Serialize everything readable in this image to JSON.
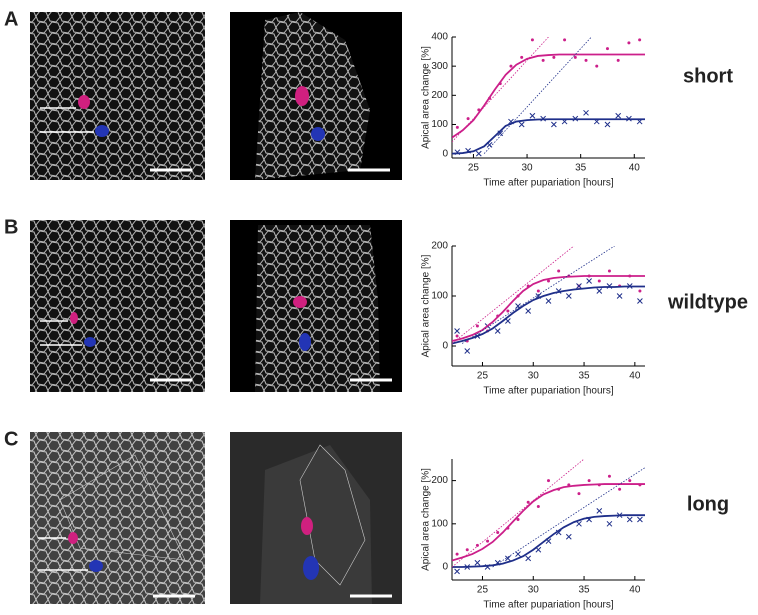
{
  "panels": [
    {
      "letter": "A",
      "label": "short"
    },
    {
      "letter": "B",
      "label": "wildtype"
    },
    {
      "letter": "C",
      "label": "long"
    }
  ],
  "chart_data": [
    {
      "type": "scatter",
      "x_label": "Time after pupariation [hours]",
      "y_label": "Apical area change [%]",
      "xlim": [
        23,
        41
      ],
      "ylim": [
        -15,
        400
      ],
      "xticks": [
        25,
        30,
        35,
        40
      ],
      "yticks": [
        0,
        100,
        200,
        300,
        400
      ],
      "series": [
        {
          "color": "#cc1f8a",
          "marker": "dot",
          "x": [
            23.5,
            24.5,
            25.5,
            26.5,
            27.5,
            28.5,
            29.5,
            30.5,
            31.5,
            32.5,
            33.5,
            34.5,
            35.5,
            36.5,
            37.5,
            38.5,
            39.5,
            40.5
          ],
          "values": [
            90,
            120,
            150,
            190,
            240,
            300,
            330,
            390,
            320,
            330,
            390,
            330,
            320,
            300,
            360,
            320,
            380,
            390
          ]
        },
        {
          "color": "#1f2f8a",
          "marker": "x",
          "x": [
            23.5,
            24.5,
            25.5,
            26.5,
            27.5,
            28.5,
            29.5,
            30.5,
            31.5,
            32.5,
            33.5,
            34.5,
            35.5,
            36.5,
            37.5,
            38.5,
            39.5,
            40.5
          ],
          "values": [
            5,
            10,
            0,
            30,
            70,
            110,
            100,
            130,
            120,
            100,
            110,
            120,
            140,
            110,
            100,
            130,
            120,
            110
          ]
        },
        {
          "color": "#cc1f8a",
          "style": "solid",
          "x": [
            23,
            24,
            25,
            26,
            27,
            28,
            29,
            30,
            31,
            32,
            33,
            34,
            35,
            36,
            37,
            38,
            39,
            40,
            41
          ],
          "values": [
            55,
            80,
            115,
            165,
            220,
            270,
            305,
            325,
            335,
            338,
            340,
            340,
            340,
            340,
            340,
            340,
            340,
            340,
            340
          ]
        },
        {
          "color": "#1f2f8a",
          "style": "solid",
          "x": [
            23,
            24,
            25,
            26,
            27,
            28,
            29,
            30,
            31,
            32,
            33,
            34,
            35,
            36,
            37,
            38,
            39,
            40,
            41
          ],
          "values": [
            0,
            2,
            8,
            25,
            60,
            95,
            110,
            115,
            117,
            118,
            118,
            118,
            118,
            118,
            118,
            118,
            118,
            118,
            118
          ]
        },
        {
          "color": "#cc1f8a",
          "style": "dotted",
          "x": [
            23,
            32
          ],
          "values": [
            40,
            400
          ]
        },
        {
          "color": "#1f2f8a",
          "style": "dotted",
          "x": [
            26,
            36
          ],
          "values": [
            0,
            400
          ]
        }
      ]
    },
    {
      "type": "scatter",
      "x_label": "Time after pupariation [hours]",
      "y_label": "Apical area change [%]",
      "xlim": [
        22,
        41
      ],
      "ylim": [
        -40,
        200
      ],
      "xticks": [
        25,
        30,
        35,
        40
      ],
      "yticks": [
        0,
        100,
        200
      ],
      "series": [
        {
          "color": "#cc1f8a",
          "marker": "dot",
          "x": [
            22.5,
            23.5,
            24.5,
            25.5,
            26.5,
            27.5,
            28.5,
            29.5,
            30.5,
            31.5,
            32.5,
            33.5,
            34.5,
            35.5,
            36.5,
            37.5,
            38.5,
            39.5,
            40.5
          ],
          "values": [
            20,
            10,
            40,
            30,
            60,
            70,
            100,
            120,
            110,
            130,
            150,
            140,
            120,
            140,
            130,
            150,
            120,
            140,
            110
          ]
        },
        {
          "color": "#1f2f8a",
          "marker": "x",
          "x": [
            22.5,
            23.5,
            24.5,
            25.5,
            26.5,
            27.5,
            28.5,
            29.5,
            30.5,
            31.5,
            32.5,
            33.5,
            34.5,
            35.5,
            36.5,
            37.5,
            38.5,
            39.5,
            40.5
          ],
          "values": [
            30,
            -10,
            20,
            40,
            30,
            50,
            80,
            70,
            100,
            90,
            110,
            100,
            120,
            130,
            110,
            120,
            100,
            120,
            90
          ]
        },
        {
          "color": "#cc1f8a",
          "style": "solid",
          "x": [
            22,
            23,
            24,
            25,
            26,
            27,
            28,
            29,
            30,
            31,
            32,
            33,
            34,
            35,
            36,
            37,
            38,
            39,
            40,
            41
          ],
          "values": [
            10,
            15,
            22,
            32,
            48,
            68,
            90,
            110,
            124,
            132,
            136,
            138,
            139,
            140,
            140,
            140,
            140,
            140,
            140,
            140
          ]
        },
        {
          "color": "#1f2f8a",
          "style": "solid",
          "x": [
            22,
            23,
            24,
            25,
            26,
            27,
            28,
            29,
            30,
            31,
            32,
            33,
            34,
            35,
            36,
            37,
            38,
            39,
            40,
            41
          ],
          "values": [
            5,
            10,
            16,
            24,
            35,
            50,
            66,
            80,
            92,
            100,
            106,
            110,
            113,
            115,
            117,
            118,
            118,
            119,
            119,
            119
          ]
        },
        {
          "color": "#cc1f8a",
          "style": "dotted",
          "x": [
            22,
            34
          ],
          "values": [
            5,
            200
          ]
        },
        {
          "color": "#1f2f8a",
          "style": "dotted",
          "x": [
            23,
            38
          ],
          "values": [
            5,
            200
          ]
        }
      ]
    },
    {
      "type": "scatter",
      "x_label": "Time after pupariation [hours]",
      "y_label": "Apical area change [%]",
      "xlim": [
        22,
        41
      ],
      "ylim": [
        -30,
        250
      ],
      "xticks": [
        25,
        30,
        35,
        40
      ],
      "yticks": [
        0,
        100,
        200
      ],
      "series": [
        {
          "color": "#cc1f8a",
          "marker": "dot",
          "x": [
            22.5,
            23.5,
            24.5,
            25.5,
            26.5,
            27.5,
            28.5,
            29.5,
            30.5,
            31.5,
            32.5,
            33.5,
            34.5,
            35.5,
            36.5,
            37.5,
            38.5,
            39.5,
            40.5
          ],
          "values": [
            30,
            40,
            50,
            60,
            80,
            90,
            110,
            150,
            140,
            200,
            180,
            190,
            170,
            200,
            190,
            210,
            180,
            200,
            190
          ]
        },
        {
          "color": "#1f2f8a",
          "marker": "x",
          "x": [
            22.5,
            23.5,
            24.5,
            25.5,
            26.5,
            27.5,
            28.5,
            29.5,
            30.5,
            31.5,
            32.5,
            33.5,
            34.5,
            35.5,
            36.5,
            37.5,
            38.5,
            39.5,
            40.5
          ],
          "values": [
            -10,
            0,
            10,
            0,
            10,
            20,
            30,
            20,
            40,
            60,
            80,
            70,
            100,
            110,
            130,
            100,
            120,
            110,
            110
          ]
        },
        {
          "color": "#cc1f8a",
          "style": "solid",
          "x": [
            22,
            23,
            24,
            25,
            26,
            27,
            28,
            29,
            30,
            31,
            32,
            33,
            34,
            35,
            36,
            37,
            38,
            39,
            40,
            41
          ],
          "values": [
            15,
            22,
            30,
            42,
            58,
            80,
            105,
            130,
            152,
            168,
            178,
            185,
            188,
            190,
            191,
            192,
            192,
            192,
            192,
            192
          ]
        },
        {
          "color": "#1f2f8a",
          "style": "solid",
          "x": [
            22,
            23,
            24,
            25,
            26,
            27,
            28,
            29,
            30,
            31,
            32,
            33,
            34,
            35,
            36,
            37,
            38,
            39,
            40,
            41
          ],
          "values": [
            0,
            0,
            1,
            2,
            4,
            8,
            15,
            25,
            40,
            58,
            76,
            92,
            104,
            112,
            116,
            118,
            119,
            120,
            120,
            120
          ]
        },
        {
          "color": "#cc1f8a",
          "style": "dotted",
          "x": [
            22,
            35
          ],
          "values": [
            0,
            250
          ]
        },
        {
          "color": "#1f2f8a",
          "style": "dotted",
          "x": [
            26,
            41
          ],
          "values": [
            0,
            230
          ]
        }
      ]
    }
  ]
}
